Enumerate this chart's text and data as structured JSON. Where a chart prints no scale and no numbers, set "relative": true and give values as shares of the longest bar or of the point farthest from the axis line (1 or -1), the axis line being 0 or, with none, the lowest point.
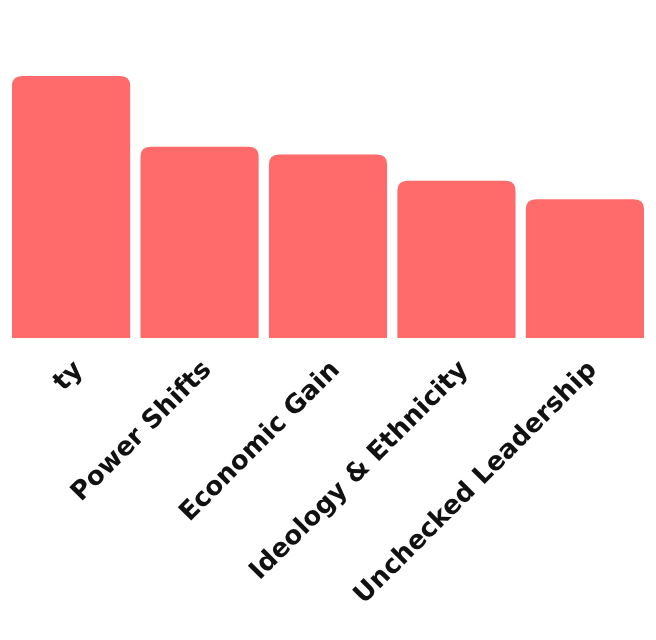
{
  "chart_data": {
    "type": "bar",
    "relative": true,
    "color": "#ff6b6b",
    "categories": [
      "ty",
      "Power Shifts",
      "Economic Gain",
      "Ideology & Ethnicity",
      "Unchecked Leadership"
    ],
    "values": [
      1,
      0.73,
      0.7,
      0.6,
      0.53
    ]
  }
}
